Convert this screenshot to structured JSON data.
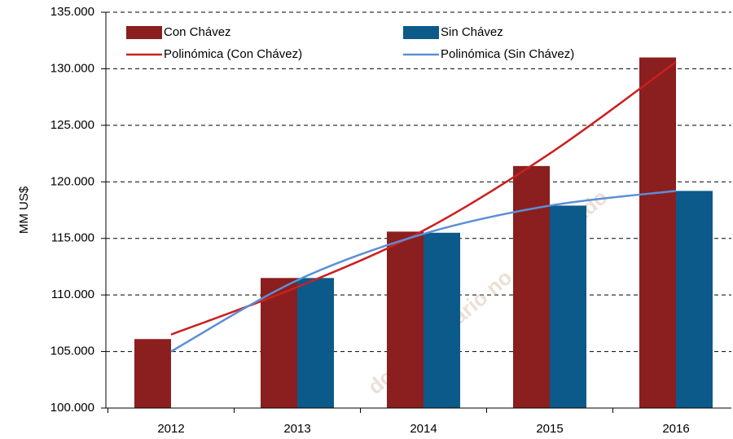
{
  "chart_data": {
    "type": "bar",
    "y_label": "MM US$",
    "categories": [
      "2012",
      "2013",
      "2014",
      "2015",
      "2016"
    ],
    "series": [
      {
        "name": "Con Chávez",
        "color": "#8b1e1e",
        "values": [
          106100,
          111500,
          115600,
          121400,
          131000
        ]
      },
      {
        "name": "Sin Chávez",
        "color": "#0b5a8a",
        "values": [
          null,
          111500,
          115500,
          117900,
          119200
        ]
      }
    ],
    "trend_series": [
      {
        "name": "Polinómica (Con Chávez)",
        "color": "#cc1f1f",
        "values": [
          106500,
          110700,
          115700,
          122500,
          130600
        ]
      },
      {
        "name": "Polinómica (Sin Chávez)",
        "color": "#5b8fd6",
        "values": [
          105000,
          111300,
          115400,
          117900,
          119200
        ]
      }
    ],
    "ylim": [
      100000,
      135000
    ],
    "yticks": [
      {
        "value": 100000,
        "label": "100.000"
      },
      {
        "value": 105000,
        "label": "105.000"
      },
      {
        "value": 110000,
        "label": "110.000"
      },
      {
        "value": 115000,
        "label": "115.000"
      },
      {
        "value": 120000,
        "label": "120.000"
      },
      {
        "value": 125000,
        "label": "125.000"
      },
      {
        "value": 130000,
        "label": "130.000"
      },
      {
        "value": 135000,
        "label": "135.000"
      }
    ],
    "grid": true,
    "watermark": "do por usuario no autenticado"
  }
}
